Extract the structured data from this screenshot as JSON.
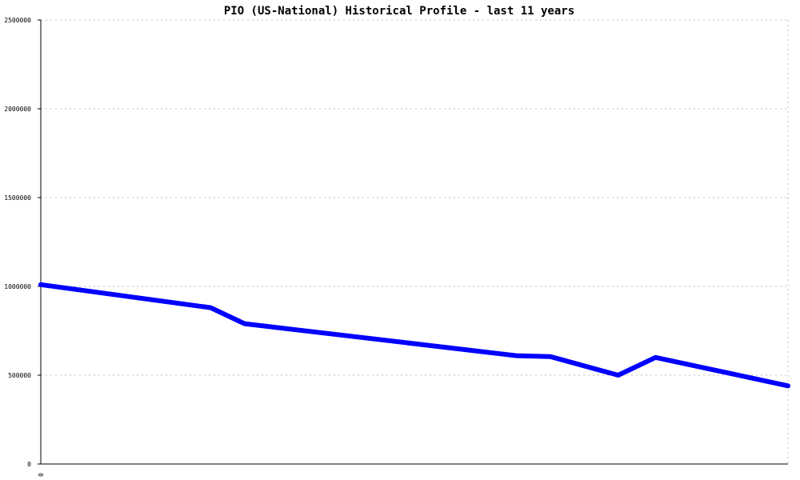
{
  "chart_data": {
    "type": "line",
    "title": "PIO (US-National) Historical Profile - last 11 years",
    "xlabel": "",
    "ylabel": "",
    "ylim": [
      0,
      2500000
    ],
    "xlim": [
      0,
      11
    ],
    "yticks": [
      0,
      500000,
      1000000,
      1500000,
      2000000,
      2500000
    ],
    "ytick_labels": [
      "0",
      "500000",
      "1000000",
      "1500000",
      "2000000",
      "2500000"
    ],
    "xtick_labels": [
      "0"
    ],
    "grid": true,
    "legend": "none",
    "series": [
      {
        "color": "#0000ff",
        "x": [
          0,
          2.5,
          3.0,
          7.0,
          7.5,
          8.5,
          9.05,
          11.0
        ],
        "y": [
          1010000,
          880000,
          790000,
          610000,
          605000,
          500000,
          600000,
          440000
        ]
      }
    ]
  }
}
